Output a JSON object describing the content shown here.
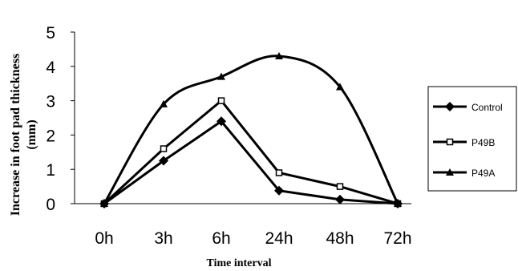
{
  "chart_data": {
    "type": "line",
    "categories": [
      "0h",
      "3h",
      "6h",
      "24h",
      "48h",
      "72h"
    ],
    "series": [
      {
        "name": "Control",
        "marker": "diamond",
        "values": [
          0,
          1.25,
          2.4,
          0.38,
          0.12,
          0
        ]
      },
      {
        "name": "P49B",
        "marker": "square",
        "values": [
          0,
          1.6,
          3.0,
          0.9,
          0.5,
          0
        ]
      },
      {
        "name": "P49A",
        "marker": "triangle",
        "values": [
          0,
          2.9,
          3.7,
          4.3,
          3.4,
          0
        ]
      }
    ],
    "xlabel": "Time interval",
    "ylabel": "Increase in foot pad thickness (mm)",
    "ylim": [
      0,
      5
    ],
    "yticks": [
      "0",
      "1",
      "2",
      "3",
      "4",
      "5"
    ],
    "grid": false,
    "legend_position": "right",
    "colors": {
      "line": "#000000",
      "background": "#ffffff"
    }
  }
}
